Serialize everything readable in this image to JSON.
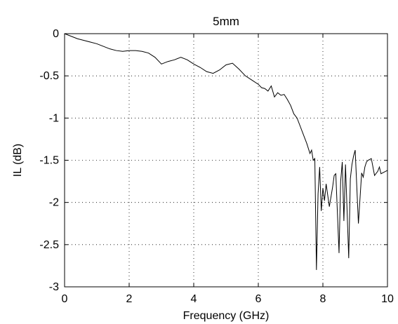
{
  "chart_data": {
    "type": "line",
    "title": "5mm",
    "xlabel": "Frequency (GHz)",
    "ylabel": "IL (dB)",
    "xlim": [
      0,
      10
    ],
    "ylim": [
      -3,
      0
    ],
    "x_ticks": [
      0,
      2,
      4,
      6,
      8,
      10
    ],
    "y_ticks": [
      0,
      -0.5,
      -1,
      -1.5,
      -2,
      -2.5,
      -3
    ],
    "x_tick_labels": [
      "0",
      "2",
      "4",
      "6",
      "8",
      "10"
    ],
    "y_tick_labels": [
      "0",
      "-0.5",
      "-1",
      "-1.5",
      "-2",
      "-2.5",
      "-3"
    ],
    "grid": true,
    "grid_style": "dotted",
    "line_color": "#000000",
    "series": [
      {
        "x": [
          0,
          0.2,
          0.4,
          0.6,
          0.8,
          1.0,
          1.2,
          1.4,
          1.6,
          1.8,
          2.0,
          2.2,
          2.4,
          2.6,
          2.8,
          3.0,
          3.2,
          3.4,
          3.6,
          3.8,
          4.0,
          4.2,
          4.4,
          4.6,
          4.8,
          5.0,
          5.2,
          5.4,
          5.6,
          5.8,
          6.0,
          6.1,
          6.2,
          6.3,
          6.4,
          6.5,
          6.6,
          6.7,
          6.8,
          6.9,
          7.0,
          7.1,
          7.2,
          7.3,
          7.4,
          7.5,
          7.6,
          7.65,
          7.7,
          7.75,
          7.8,
          7.85,
          7.9,
          7.95,
          8.0,
          8.05,
          8.1,
          8.2,
          8.3,
          8.35,
          8.4,
          8.5,
          8.55,
          8.6,
          8.65,
          8.7,
          8.8,
          8.85,
          8.9,
          8.95,
          9.0,
          9.1,
          9.2,
          9.25,
          9.3,
          9.35,
          9.4,
          9.5,
          9.6,
          9.7,
          9.75,
          9.8,
          9.9,
          10.0
        ],
        "y": [
          0,
          -0.03,
          -0.06,
          -0.08,
          -0.1,
          -0.12,
          -0.15,
          -0.18,
          -0.2,
          -0.21,
          -0.2,
          -0.2,
          -0.21,
          -0.23,
          -0.28,
          -0.36,
          -0.33,
          -0.31,
          -0.28,
          -0.31,
          -0.36,
          -0.4,
          -0.45,
          -0.47,
          -0.43,
          -0.37,
          -0.35,
          -0.42,
          -0.5,
          -0.55,
          -0.6,
          -0.64,
          -0.65,
          -0.68,
          -0.62,
          -0.75,
          -0.7,
          -0.73,
          -0.72,
          -0.78,
          -0.85,
          -0.95,
          -1.0,
          -1.1,
          -1.2,
          -1.3,
          -1.42,
          -1.38,
          -1.5,
          -1.48,
          -2.8,
          -1.9,
          -1.58,
          -2.1,
          -1.83,
          -1.98,
          -1.78,
          -2.05,
          -1.82,
          -1.68,
          -1.66,
          -2.6,
          -1.75,
          -1.52,
          -2.22,
          -1.55,
          -2.66,
          -1.72,
          -1.55,
          -1.45,
          -1.38,
          -2.25,
          -1.65,
          -1.7,
          -1.58,
          -1.52,
          -1.5,
          -1.48,
          -1.68,
          -1.63,
          -1.58,
          -1.66,
          -1.64,
          -1.62
        ]
      }
    ]
  }
}
